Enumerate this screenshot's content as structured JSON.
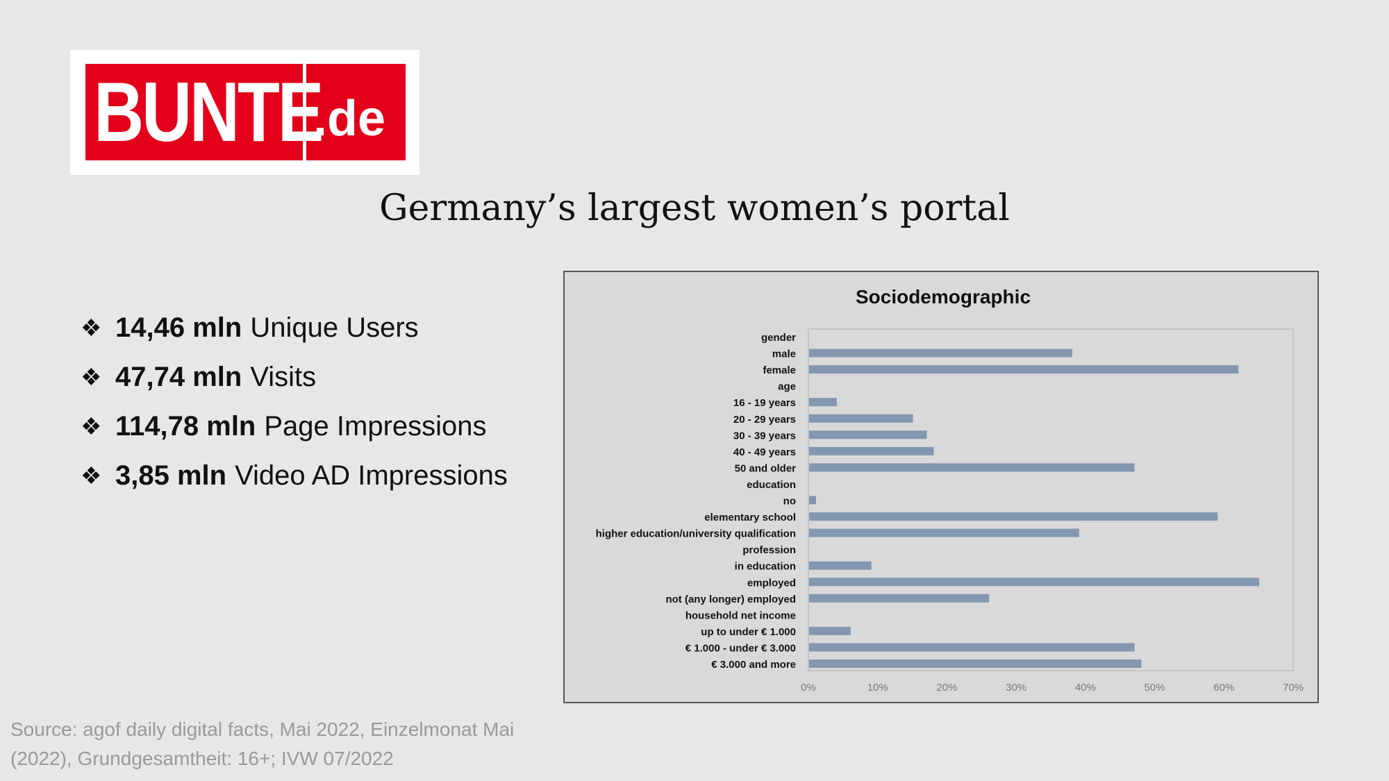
{
  "logo": {
    "main": "BUNTE",
    "suffix": ".de"
  },
  "page_title": "Germany’s largest women’s portal",
  "stats": [
    {
      "bullet": "❖",
      "value": "14,46 mln",
      "label": "Unique Users"
    },
    {
      "bullet": "❖",
      "value": "47,74 mln",
      "label": "Visits"
    },
    {
      "bullet": "❖",
      "value": "114,78 mln",
      "label": "Page Impressions"
    },
    {
      "bullet": "❖",
      "value": "3,85 mln",
      "label": "Video AD Impressions"
    }
  ],
  "source": {
    "line1": "Source: agof daily digital facts, Mai 2022, Einzelmonat Mai",
    "line2": "(2022), Grundgesamtheit: 16+; IVW 07/2022"
  },
  "chart_data": {
    "type": "bar",
    "orientation": "horizontal",
    "title": "Sociodemographic",
    "xlim": [
      0,
      70
    ],
    "x_ticks": [
      "0%",
      "10%",
      "20%",
      "30%",
      "40%",
      "50%",
      "60%",
      "70%"
    ],
    "bar_color": "#8497b0",
    "grid": false,
    "legend": "none",
    "categories": [
      "gender",
      "male",
      "female",
      "age",
      "16 - 19 years",
      "20 - 29 years",
      "30 - 39 years",
      "40 - 49 years",
      "50 and older",
      "education",
      "no",
      "elementary school",
      "higher education/university qualification",
      "profession",
      "in education",
      "employed",
      "not (any longer) employed",
      "household net income",
      "up to under € 1.000",
      "€ 1.000 - under € 3.000",
      "€ 3.000 and more"
    ],
    "values": [
      null,
      38,
      62,
      null,
      4,
      15,
      17,
      18,
      47,
      null,
      1,
      59,
      39,
      null,
      9,
      65,
      26,
      null,
      6,
      47,
      48
    ]
  }
}
